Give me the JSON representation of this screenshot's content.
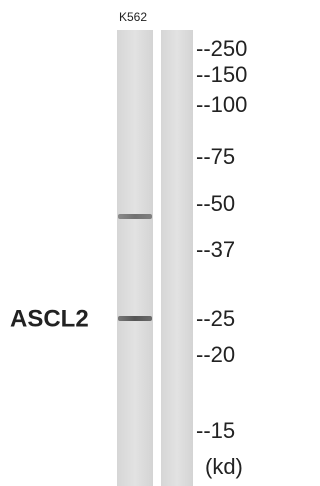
{
  "lane_label": "K562",
  "protein_label": "ASCL2",
  "markers": [
    "--250",
    "--150",
    "--100",
    "--75",
    "--50",
    "--37",
    "--25",
    "--20",
    "--15"
  ],
  "unit": "(kd)"
}
